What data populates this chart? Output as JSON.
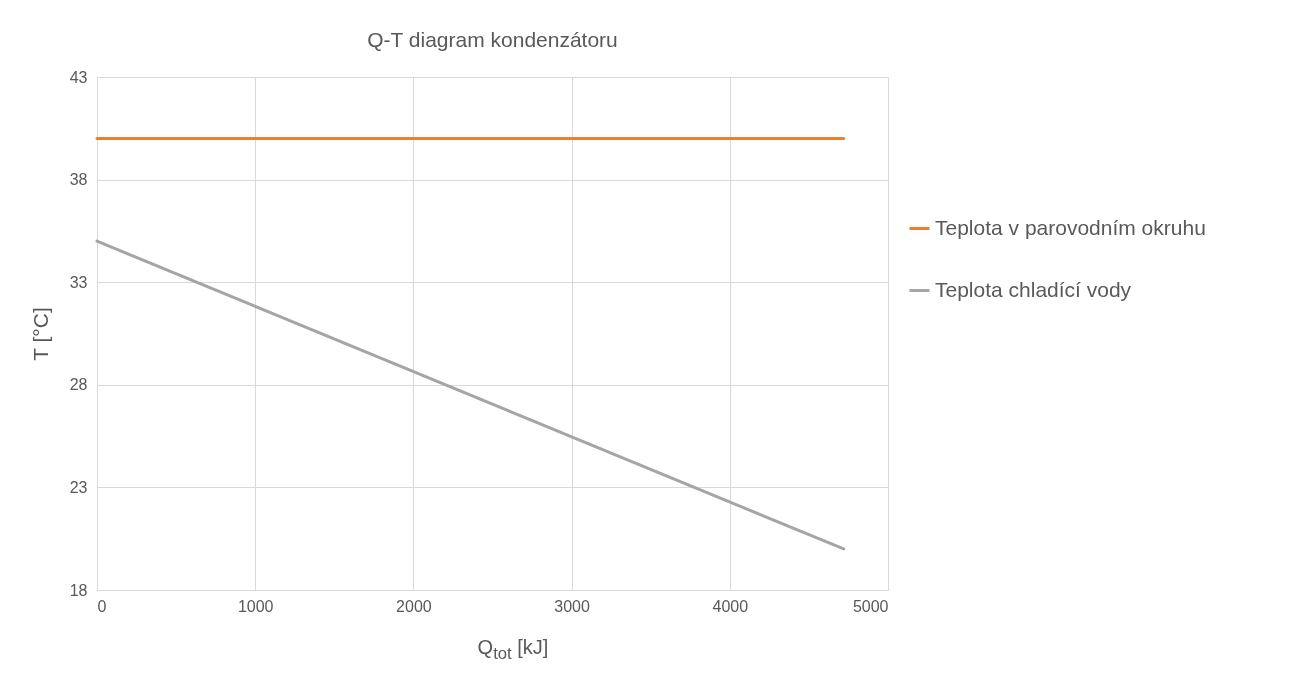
{
  "chart_data": {
    "type": "line",
    "title": "Q-T diagram kondenzátoru",
    "xlabel": "Q$_{tot}$ [kJ]",
    "ylabel": "T [°C]",
    "xlim": [
      0,
      5000
    ],
    "xticks": [
      0,
      1000,
      2000,
      3000,
      4000,
      5000
    ],
    "ylim": [
      18,
      43
    ],
    "yticks": [
      18,
      23,
      28,
      33,
      38,
      43
    ],
    "grid": true,
    "legend": "right",
    "x": [
      0,
      4720
    ],
    "series": [
      {
        "name": "Teplota v parovodním okruhu",
        "color": "#ed7d31",
        "values": [
          40,
          40
        ]
      },
      {
        "name": "Teplota chladící vody",
        "color": "#a5a5a5",
        "values": [
          35,
          20
        ]
      }
    ]
  }
}
